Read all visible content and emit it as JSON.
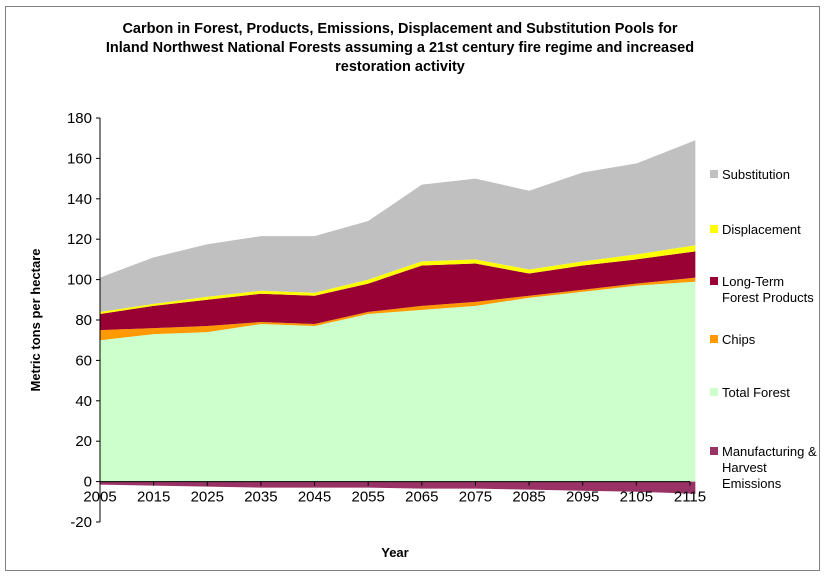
{
  "chart_data": {
    "type": "area",
    "title": "Carbon in Forest, Products, Emissions, Displacement and Substitution Pools for Inland Northwest National Forests assuming  a 21st century fire regime and increased restoration activity",
    "xlabel": "Year",
    "ylabel": "Metric tons per hectare",
    "xlim": [
      2005,
      2115
    ],
    "ylim": [
      -20,
      180
    ],
    "xticks": [
      "2005",
      "2015",
      "2025",
      "2035",
      "2045",
      "2055",
      "2065",
      "2075",
      "2085",
      "2095",
      "2105",
      "2115"
    ],
    "yticks": [
      "-20",
      "0",
      "20",
      "40",
      "60",
      "80",
      "100",
      "120",
      "140",
      "160",
      "180"
    ],
    "legend_position": "right",
    "grid": false,
    "x": [
      2005,
      2015,
      2025,
      2035,
      2045,
      2055,
      2065,
      2075,
      2085,
      2095,
      2105,
      2116
    ],
    "series": [
      {
        "name": "Substitution",
        "color": "#c0c0c0",
        "values": [
          17,
          23,
          26,
          27,
          28,
          29,
          38,
          40,
          39,
          44,
          45,
          52
        ]
      },
      {
        "name": "Displacement",
        "color": "#ffff00",
        "values": [
          1,
          1,
          1.5,
          1.5,
          1.5,
          2,
          2,
          2,
          2,
          2,
          2.5,
          3
        ]
      },
      {
        "name": "Long-Term Forest Products",
        "color": "#990033",
        "values": [
          8,
          11,
          13,
          14,
          14,
          14,
          20,
          19,
          11,
          12,
          12,
          13
        ]
      },
      {
        "name": "Chips",
        "color": "#ff9900",
        "values": [
          5,
          3,
          3,
          1,
          1,
          1,
          2,
          2,
          1,
          1,
          1,
          2
        ]
      },
      {
        "name": "Total Forest",
        "color": "#ccffcc",
        "values": [
          70,
          73,
          74,
          78,
          77,
          83,
          85,
          87,
          91,
          94,
          97,
          99
        ]
      },
      {
        "name": "Manufacturing & Harvest Emissions",
        "color": "#993366",
        "values": [
          -1.5,
          -2,
          -2.5,
          -3,
          -3,
          -3,
          -3.5,
          -3.5,
          -4,
          -4.5,
          -5,
          -6
        ]
      }
    ]
  }
}
